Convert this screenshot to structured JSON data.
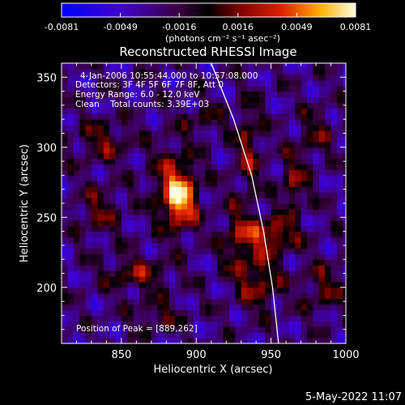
{
  "chart_data": {
    "type": "heatmap",
    "title": "Reconstructed RHESSI Image",
    "xlabel": "Heliocentric X (arcsec)",
    "ylabel": "Heliocentric Y (arcsec)",
    "xlim": [
      810,
      1000
    ],
    "ylim": [
      160,
      360
    ],
    "x_ticks": [
      850,
      900,
      950,
      1000
    ],
    "y_ticks": [
      200,
      250,
      300,
      350
    ],
    "colorbar": {
      "label": "(photons cm⁻² s⁻¹ asec⁻²)",
      "range": [
        -0.0081,
        0.0081
      ],
      "tick_labels": [
        "-0.0081",
        "-0.0049",
        "-0.0016",
        "0.0016",
        "0.0049",
        "0.0081"
      ]
    },
    "info_lines": [
      "4-Jan-2006 10:55:44.000 to 10:57:08.000",
      "Detectors: 3F 4F 5F 6F 7F 8F, Att 0",
      "Energy Range: 6.0 - 12.0 keV",
      "Clean    Total counts: 3.39E+03"
    ],
    "peak_label": "Position of Peak = [889,262]",
    "peak": [
      889,
      262
    ],
    "timestamp": "5-May-2022 11:07",
    "limb_curve": [
      [
        910,
        360
      ],
      [
        925,
        320
      ],
      [
        937,
        280
      ],
      [
        945,
        240
      ],
      [
        951,
        200
      ],
      [
        955,
        160
      ]
    ],
    "sources": [
      {
        "x": 889,
        "y": 262,
        "peak": 1.0,
        "sx": 8,
        "sy": 14
      },
      {
        "x": 884,
        "y": 278,
        "peak": 0.45,
        "sx": 10,
        "sy": 18
      },
      {
        "x": 950,
        "y": 238,
        "peak": 0.75,
        "sx": 12,
        "sy": 8
      },
      {
        "x": 942,
        "y": 205,
        "peak": 0.55,
        "sx": 10,
        "sy": 14
      },
      {
        "x": 928,
        "y": 235,
        "peak": 0.45,
        "sx": 8,
        "sy": 18
      },
      {
        "x": 935,
        "y": 300,
        "peak": 0.5,
        "sx": 6,
        "sy": 22
      },
      {
        "x": 965,
        "y": 275,
        "peak": 0.5,
        "sx": 6,
        "sy": 15
      },
      {
        "x": 838,
        "y": 305,
        "peak": 0.45,
        "sx": 12,
        "sy": 10
      },
      {
        "x": 860,
        "y": 210,
        "peak": 0.5,
        "sx": 15,
        "sy": 8
      },
      {
        "x": 835,
        "y": 255,
        "peak": 0.4,
        "sx": 10,
        "sy": 12
      },
      {
        "x": 985,
        "y": 200,
        "peak": 0.4,
        "sx": 10,
        "sy": 12
      },
      {
        "x": 875,
        "y": 180,
        "peak": 0.35,
        "sx": 12,
        "sy": 8
      },
      {
        "x": 980,
        "y": 310,
        "peak": 0.35,
        "sx": 8,
        "sy": 12
      },
      {
        "x": 905,
        "y": 320,
        "peak": 0.3,
        "sx": 10,
        "sy": 8
      }
    ]
  }
}
